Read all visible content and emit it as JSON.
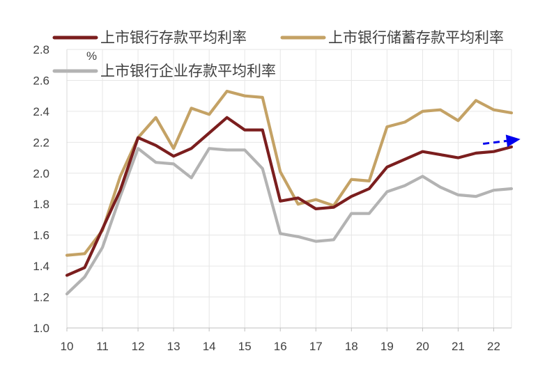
{
  "chart_data": {
    "type": "line",
    "title": "",
    "xlabel": "",
    "ylabel": "%",
    "x_tick_labels": [
      "10",
      "11",
      "12",
      "13",
      "14",
      "15",
      "16",
      "17",
      "18",
      "19",
      "20",
      "21",
      "22"
    ],
    "x_ticks": [
      2010,
      2011,
      2012,
      2013,
      2014,
      2015,
      2016,
      2017,
      2018,
      2019,
      2020,
      2021,
      2022
    ],
    "xlim": [
      2010,
      2022.5
    ],
    "ylim": [
      1.0,
      2.8
    ],
    "y_ticks": [
      "1.0",
      "1.2",
      "1.4",
      "1.6",
      "1.8",
      "2.0",
      "2.2",
      "2.4",
      "2.6",
      "2.8"
    ],
    "grid": "horizontal and vertical",
    "legend": "top",
    "x": [
      2010,
      2010.5,
      2011,
      2011.5,
      2012,
      2012.5,
      2013,
      2013.5,
      2014,
      2014.5,
      2015,
      2015.5,
      2016,
      2016.5,
      2017,
      2017.5,
      2018,
      2018.5,
      2019,
      2019.5,
      2020,
      2020.5,
      2021,
      2021.5,
      2022,
      2022.5
    ],
    "series": [
      {
        "name": "上市银行存款平均利率",
        "color": "#7b1e1e",
        "values": [
          1.34,
          1.39,
          1.64,
          1.89,
          2.23,
          2.18,
          2.11,
          2.16,
          2.26,
          2.36,
          2.28,
          2.28,
          1.82,
          1.84,
          1.77,
          1.78,
          1.85,
          1.9,
          2.04,
          2.09,
          2.14,
          2.12,
          2.1,
          2.13,
          2.14,
          2.17
        ]
      },
      {
        "name": "上市银行储蓄存款平均利率",
        "color": "#c4a265",
        "values": [
          1.47,
          1.48,
          1.63,
          1.98,
          2.23,
          2.36,
          2.16,
          2.42,
          2.38,
          2.53,
          2.5,
          2.49,
          2.01,
          1.8,
          1.83,
          1.79,
          1.96,
          1.95,
          2.3,
          2.33,
          2.4,
          2.41,
          2.34,
          2.47,
          2.41,
          2.39
        ]
      },
      {
        "name": "上市银行企业存款平均利率",
        "color": "#b3b3b3",
        "values": [
          1.22,
          1.33,
          1.52,
          1.85,
          2.16,
          2.07,
          2.06,
          1.97,
          2.16,
          2.15,
          2.15,
          2.03,
          1.61,
          1.59,
          1.56,
          1.57,
          1.74,
          1.74,
          1.88,
          1.92,
          1.98,
          1.91,
          1.86,
          1.85,
          1.89,
          1.9
        ]
      }
    ],
    "annotations": [
      {
        "type": "dashed-arrow",
        "color": "#0000ee",
        "from": [
          2021.7,
          2.19
        ],
        "to": [
          2022.75,
          2.22
        ]
      }
    ]
  }
}
